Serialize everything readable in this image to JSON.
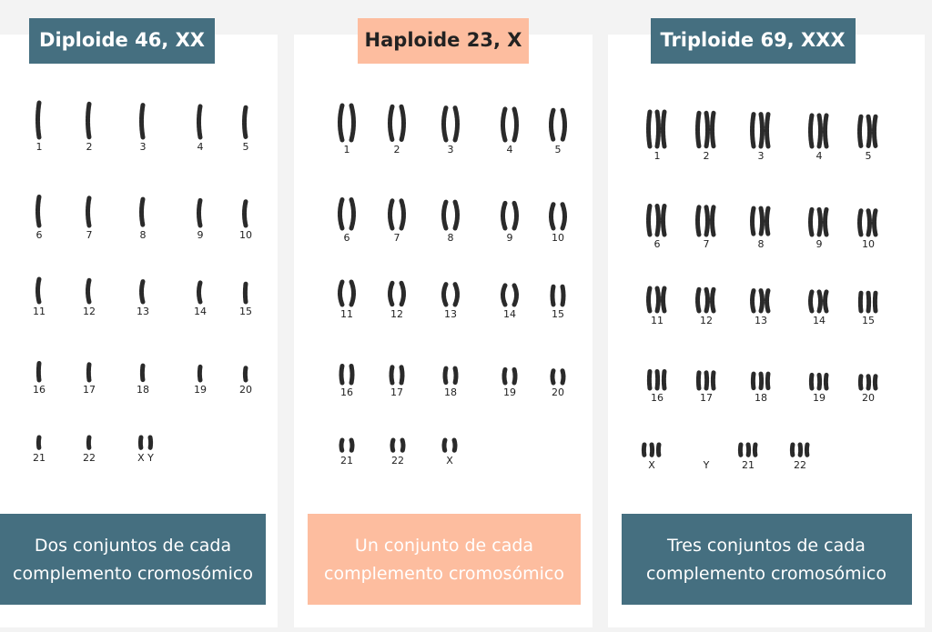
{
  "panels": [
    {
      "title": "Diploide 46, XX",
      "labels": [
        "1",
        "2",
        "3",
        "4",
        "5",
        "6",
        "7",
        "8",
        "9",
        "10",
        "11",
        "12",
        "13",
        "14",
        "15",
        "16",
        "17",
        "18",
        "19",
        "20",
        "21",
        "22",
        "X Y"
      ],
      "caption": [
        "Dos conjuntos de cada",
        "complemento cromosómico"
      ]
    },
    {
      "title": "Haploide 23, X",
      "labels": [
        "1",
        "2",
        "3",
        "4",
        "5",
        "6",
        "7",
        "8",
        "9",
        "10",
        "11",
        "12",
        "13",
        "14",
        "15",
        "16",
        "17",
        "18",
        "19",
        "20",
        "21",
        "22",
        "X"
      ],
      "caption": [
        "Un conjunto de cada",
        "complemento cromosómico"
      ]
    },
    {
      "title": "Triploide 69, XXX",
      "labels": [
        "1",
        "2",
        "3",
        "4",
        "5",
        "6",
        "7",
        "8",
        "9",
        "10",
        "11",
        "12",
        "13",
        "14",
        "15",
        "16",
        "17",
        "18",
        "19",
        "20",
        "X",
        "Y",
        "21",
        "22"
      ],
      "caption": [
        "Tres conjuntos de cada",
        "complemento cromosómico"
      ]
    }
  ]
}
